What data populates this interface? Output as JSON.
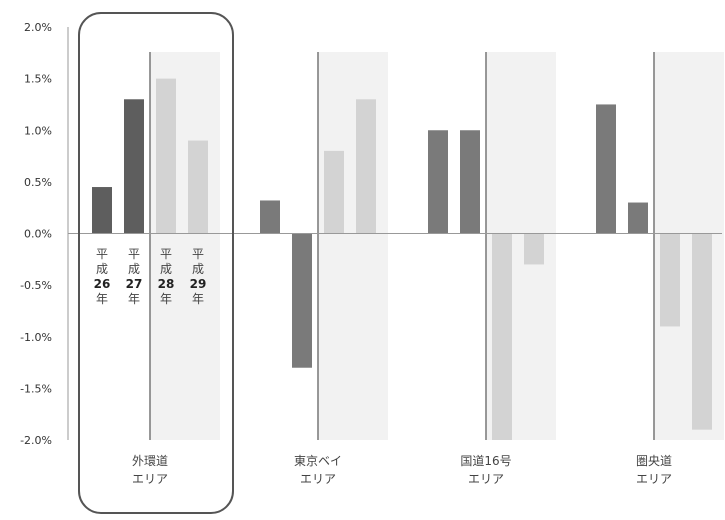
{
  "chart_data": {
    "type": "bar",
    "ylim": [
      -2.0,
      2.0
    ],
    "y_ticks": [
      "2.0%",
      "1.5%",
      "1.0%",
      "0.5%",
      "0.0%",
      "-0.5%",
      "-1.0%",
      "-1.5%",
      "-2.0%"
    ],
    "y_tick_values": [
      2.0,
      1.5,
      1.0,
      0.5,
      0.0,
      -0.5,
      -1.0,
      -1.5,
      -2.0
    ],
    "grid": false,
    "bar_legend": [
      {
        "line1": "平",
        "line2": "成",
        "line3": "26",
        "line4": "年"
      },
      {
        "line1": "平",
        "line2": "成",
        "line3": "27",
        "line4": "年"
      },
      {
        "line1": "平",
        "line2": "成",
        "line3": "28",
        "line4": "年"
      },
      {
        "line1": "平",
        "line2": "成",
        "line3": "29",
        "line4": "年"
      }
    ],
    "groups": [
      {
        "label_line1": "外環道",
        "label_line2": "エリア",
        "values": [
          0.45,
          1.3,
          1.5,
          0.9
        ],
        "highlighted": true
      },
      {
        "label_line1": "東京ベイ",
        "label_line2": "エリア",
        "values": [
          0.32,
          -1.3,
          0.8,
          1.3
        ],
        "highlighted": false
      },
      {
        "label_line1": "国道16号",
        "label_line2": "エリア",
        "values": [
          1.0,
          1.0,
          -2.0,
          -0.3
        ],
        "highlighted": false
      },
      {
        "label_line1": "圏央道",
        "label_line2": "エリア",
        "values": [
          1.25,
          0.3,
          -0.9,
          -1.9
        ],
        "highlighted": false
      }
    ],
    "colors": {
      "actual_light": "#7a7a7a",
      "actual_dark": "#5e5e5e",
      "forecast": "#d3d3d3",
      "forecast_band": "#f2f2f2",
      "divider": "#777777",
      "axis": "#999999",
      "highlight_border": "#555555"
    }
  }
}
